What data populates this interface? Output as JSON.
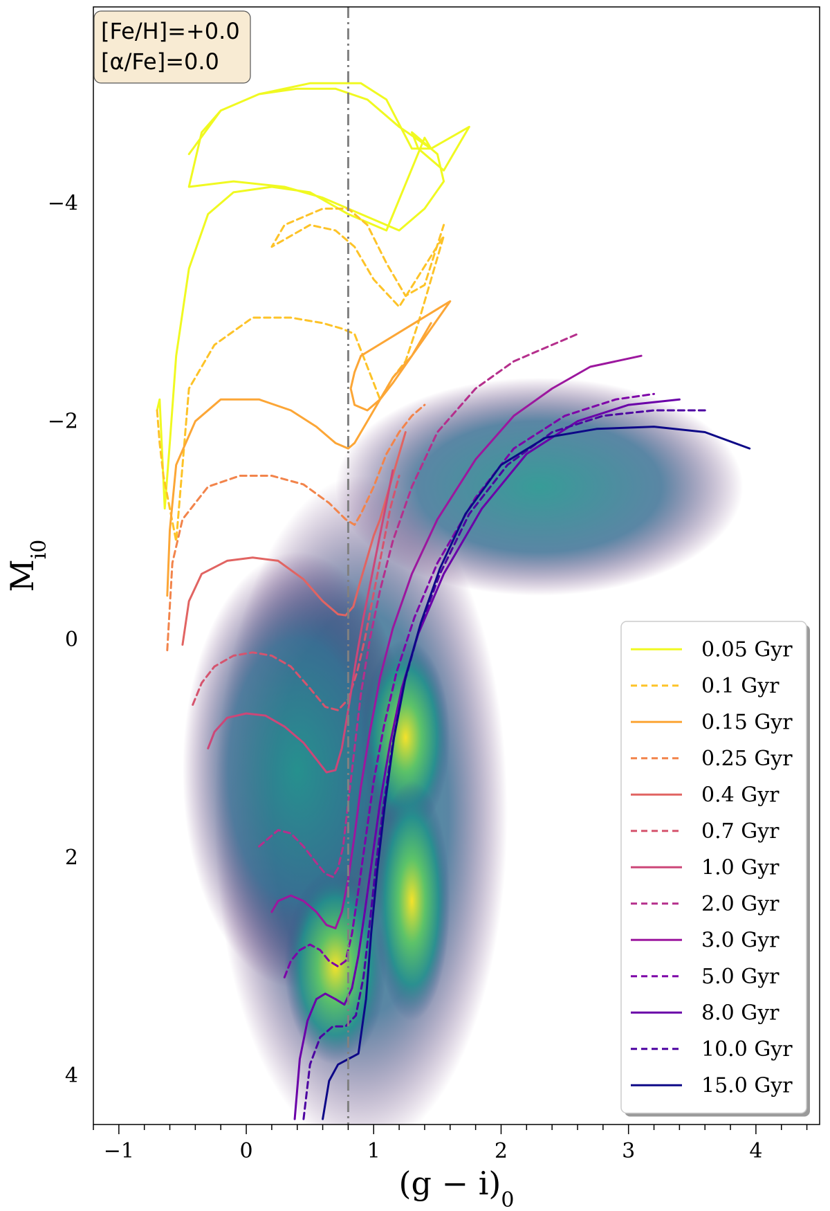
{
  "chart_data": {
    "type": "line",
    "title": "",
    "xlabel": "(g − i)",
    "xlabel_sub": "0",
    "ylabel": "M",
    "ylabel_sub": "i0",
    "xlim": [
      -1.2,
      4.5
    ],
    "ylim": [
      4.45,
      -5.8
    ],
    "y_inverted": true,
    "x_ticks": [
      -1,
      0,
      1,
      2,
      3,
      4
    ],
    "x_tick_labels": [
      "−1",
      "0",
      "1",
      "2",
      "3",
      "4"
    ],
    "y_ticks": [
      -4,
      -2,
      0,
      2,
      4
    ],
    "y_tick_labels": [
      "−4",
      "−2",
      "0",
      "2",
      "4"
    ],
    "grid": false,
    "legend_position": "bottom-right",
    "annotation": {
      "line1": "[Fe/H]=+0.0",
      "line2": "[α/Fe]=0.0",
      "position": "top-left"
    },
    "reference_line": {
      "x": 0.8,
      "style": "dash-dot",
      "color": "#808080"
    },
    "background": {
      "type": "2d-histogram",
      "colormap": "viridis",
      "description_free": true
    },
    "series": [
      {
        "name": "0.05 Gyr",
        "color": "#f0f921",
        "dash": false,
        "x": [
          -0.45,
          -0.2,
          0.1,
          0.4,
          0.7,
          0.95,
          1.2,
          1.45,
          1.75,
          1.55,
          1.35,
          1.3,
          1.5,
          1.55,
          1.4,
          1.2,
          0.9,
          0.6,
          0.3,
          -0.1,
          -0.45,
          -0.35,
          -0.2,
          0.1,
          0.5,
          0.9,
          1.1,
          1.3,
          1.45,
          1.4,
          1.1,
          0.8,
          0.5,
          0.2,
          -0.1,
          -0.3,
          -0.45,
          -0.55,
          -0.6,
          -0.64,
          -0.68,
          -0.7
        ],
        "y": [
          -4.45,
          -4.85,
          -5.0,
          -5.05,
          -5.05,
          -4.95,
          -4.7,
          -4.5,
          -4.7,
          -4.3,
          -4.5,
          -4.65,
          -4.45,
          -4.2,
          -3.95,
          -3.75,
          -3.9,
          -4.05,
          -4.15,
          -4.2,
          -4.15,
          -4.65,
          -4.85,
          -5.0,
          -5.1,
          -5.1,
          -4.95,
          -4.5,
          -4.5,
          -4.6,
          -3.75,
          -3.9,
          -4.1,
          -4.15,
          -4.1,
          -3.9,
          -3.4,
          -2.6,
          -1.8,
          -1.2,
          -2.2,
          -2.1
        ]
      },
      {
        "name": "0.1 Gyr",
        "color": "#fdc328",
        "dash": true,
        "x": [
          -0.7,
          -0.68,
          -0.65,
          -0.6,
          -0.55,
          -0.45,
          -0.25,
          0.05,
          0.35,
          0.6,
          0.75,
          0.85,
          0.95,
          1.05,
          1.15,
          1.25,
          1.35,
          1.45,
          1.55,
          1.2,
          1.0,
          0.85,
          0.7,
          0.5,
          0.2,
          0.3,
          0.6,
          0.8,
          0.95,
          1.1,
          1.25,
          1.4,
          1.55
        ],
        "y": [
          -2.1,
          -1.8,
          -1.5,
          -1.2,
          -0.9,
          -2.3,
          -2.7,
          -2.95,
          -2.95,
          -2.9,
          -2.85,
          -2.8,
          -2.5,
          -2.2,
          -2.4,
          -2.55,
          -2.9,
          -3.3,
          -3.7,
          -3.05,
          -3.3,
          -3.6,
          -3.75,
          -3.8,
          -3.6,
          -3.8,
          -3.95,
          -3.95,
          -3.8,
          -3.45,
          -3.15,
          -3.25,
          -3.8
        ]
      },
      {
        "name": "0.15 Gyr",
        "color": "#fca636",
        "dash": false,
        "x": [
          -0.62,
          -0.6,
          -0.55,
          -0.4,
          -0.2,
          0.1,
          0.35,
          0.55,
          0.7,
          0.8,
          0.85,
          0.95,
          1.05,
          1.15,
          1.3,
          1.45,
          1.6,
          0.9,
          0.85,
          0.82,
          0.85,
          0.95,
          1.05,
          1.15,
          1.3,
          1.45
        ],
        "y": [
          -0.4,
          -1.0,
          -1.6,
          -2.0,
          -2.2,
          -2.2,
          -2.1,
          -1.95,
          -1.8,
          -1.75,
          -1.8,
          -2.0,
          -2.2,
          -2.35,
          -2.6,
          -2.85,
          -3.1,
          -2.6,
          -2.45,
          -2.3,
          -2.15,
          -2.1,
          -2.2,
          -2.4,
          -2.6,
          -2.9
        ]
      },
      {
        "name": "0.25 Gyr",
        "color": "#f2844b",
        "dash": true,
        "x": [
          -0.62,
          -0.58,
          -0.5,
          -0.3,
          -0.05,
          0.2,
          0.45,
          0.65,
          0.78,
          0.85,
          0.9,
          1.0,
          1.1,
          1.2,
          1.3,
          1.4
        ],
        "y": [
          0.1,
          -0.7,
          -1.1,
          -1.4,
          -1.5,
          -1.5,
          -1.42,
          -1.25,
          -1.1,
          -1.05,
          -1.15,
          -1.4,
          -1.7,
          -1.9,
          -2.05,
          -2.15
        ]
      },
      {
        "name": "0.4 Gyr",
        "color": "#e16462",
        "dash": false,
        "x": [
          -0.5,
          -0.45,
          -0.35,
          -0.15,
          0.05,
          0.25,
          0.45,
          0.6,
          0.72,
          0.78,
          0.84,
          0.9,
          0.95,
          1.0,
          1.05,
          1.1,
          1.15,
          1.2,
          1.25
        ],
        "y": [
          0.05,
          -0.35,
          -0.6,
          -0.72,
          -0.75,
          -0.72,
          -0.55,
          -0.35,
          -0.23,
          -0.22,
          -0.3,
          -0.55,
          -0.75,
          -0.95,
          -1.1,
          -1.3,
          -1.5,
          -1.7,
          -1.9
        ]
      },
      {
        "name": "0.7 Gyr",
        "color": "#d5546e",
        "dash": true,
        "x": [
          -0.42,
          -0.35,
          -0.25,
          -0.1,
          0.05,
          0.2,
          0.35,
          0.5,
          0.62,
          0.72,
          0.8,
          0.87,
          0.93,
          0.98,
          1.03,
          1.08,
          1.13,
          1.2
        ],
        "y": [
          0.6,
          0.4,
          0.25,
          0.15,
          0.12,
          0.15,
          0.25,
          0.45,
          0.62,
          0.65,
          0.55,
          0.3,
          0.0,
          -0.3,
          -0.6,
          -0.9,
          -1.2,
          -1.5
        ]
      },
      {
        "name": "1.0 Gyr",
        "color": "#cc4778",
        "dash": false,
        "x": [
          -0.3,
          -0.25,
          -0.15,
          0.0,
          0.15,
          0.3,
          0.45,
          0.55,
          0.63,
          0.7,
          0.75,
          0.8,
          0.86,
          0.92,
          0.98,
          1.04,
          1.1,
          1.15
        ],
        "y": [
          1.0,
          0.85,
          0.72,
          0.68,
          0.7,
          0.8,
          0.95,
          1.1,
          1.22,
          1.2,
          1.0,
          0.65,
          0.2,
          -0.2,
          -0.55,
          -0.9,
          -1.25,
          -1.55
        ]
      },
      {
        "name": "2.0 Gyr",
        "color": "#b52f8c",
        "dash": true,
        "x": [
          0.1,
          0.15,
          0.25,
          0.35,
          0.45,
          0.55,
          0.62,
          0.68,
          0.72,
          0.76,
          0.8,
          0.85,
          0.9,
          0.97,
          1.05,
          1.15,
          1.3,
          1.5,
          1.8,
          2.1,
          2.4,
          2.6
        ],
        "y": [
          1.9,
          1.85,
          1.75,
          1.78,
          1.9,
          2.05,
          2.15,
          2.18,
          2.1,
          1.9,
          1.5,
          1.0,
          0.5,
          0.0,
          -0.45,
          -0.9,
          -1.4,
          -1.9,
          -2.3,
          -2.55,
          -2.7,
          -2.8
        ]
      },
      {
        "name": "3.0 Gyr",
        "color": "#9c179e",
        "dash": false,
        "x": [
          0.2,
          0.25,
          0.35,
          0.45,
          0.55,
          0.63,
          0.7,
          0.75,
          0.8,
          0.85,
          0.9,
          0.97,
          1.05,
          1.15,
          1.3,
          1.5,
          1.8,
          2.1,
          2.4,
          2.7,
          3.1
        ],
        "y": [
          2.5,
          2.4,
          2.35,
          2.4,
          2.5,
          2.62,
          2.65,
          2.5,
          2.2,
          1.8,
          1.35,
          0.85,
          0.35,
          -0.1,
          -0.6,
          -1.1,
          -1.65,
          -2.05,
          -2.3,
          -2.5,
          -2.6
        ]
      },
      {
        "name": "5.0 Gyr",
        "color": "#7e03a8",
        "dash": true,
        "x": [
          0.3,
          0.35,
          0.42,
          0.5,
          0.58,
          0.65,
          0.72,
          0.78,
          0.83,
          0.88,
          0.94,
          1.0,
          1.08,
          1.18,
          1.32,
          1.5,
          1.8,
          2.1,
          2.5,
          2.9,
          3.2
        ],
        "y": [
          3.1,
          2.95,
          2.85,
          2.8,
          2.85,
          2.95,
          3.0,
          2.95,
          2.7,
          2.3,
          1.8,
          1.3,
          0.8,
          0.3,
          -0.2,
          -0.7,
          -1.3,
          -1.75,
          -2.05,
          -2.2,
          -2.25
        ]
      },
      {
        "name": "8.0 Gyr",
        "color": "#6a00a8",
        "dash": false,
        "x": [
          0.38,
          0.42,
          0.48,
          0.55,
          0.62,
          0.7,
          0.77,
          0.83,
          0.88,
          0.93,
          0.99,
          1.05,
          1.13,
          1.22,
          1.35,
          1.55,
          1.85,
          2.2,
          2.6,
          3.0,
          3.4
        ],
        "y": [
          4.4,
          3.85,
          3.5,
          3.3,
          3.25,
          3.3,
          3.35,
          3.2,
          2.9,
          2.5,
          2.0,
          1.5,
          0.95,
          0.45,
          -0.05,
          -0.6,
          -1.2,
          -1.7,
          -2.0,
          -2.15,
          -2.2
        ]
      },
      {
        "name": "10.0 Gyr",
        "color": "#4c02a1",
        "dash": true,
        "x": [
          0.45,
          0.5,
          0.58,
          0.68,
          0.78,
          0.86,
          0.92,
          0.97,
          1.02,
          1.08,
          1.15,
          1.24,
          1.36,
          1.52,
          1.75,
          2.05,
          2.4,
          2.8,
          3.2,
          3.6
        ],
        "y": [
          4.4,
          3.9,
          3.65,
          3.55,
          3.55,
          3.45,
          3.1,
          2.6,
          2.05,
          1.5,
          0.95,
          0.4,
          -0.1,
          -0.6,
          -1.15,
          -1.6,
          -1.9,
          -2.05,
          -2.1,
          -2.1
        ]
      },
      {
        "name": "15.0 Gyr",
        "color": "#0d0887",
        "dash": false,
        "x": [
          0.6,
          0.65,
          0.72,
          0.8,
          0.88,
          0.94,
          0.98,
          1.03,
          1.09,
          1.16,
          1.25,
          1.37,
          1.52,
          1.72,
          2.0,
          2.35,
          2.75,
          3.2,
          3.6,
          3.95
        ],
        "y": [
          4.4,
          4.05,
          3.9,
          3.85,
          3.8,
          3.3,
          2.7,
          2.1,
          1.5,
          0.9,
          0.35,
          -0.15,
          -0.65,
          -1.15,
          -1.6,
          -1.85,
          -1.93,
          -1.95,
          -1.9,
          -1.75
        ]
      }
    ]
  }
}
